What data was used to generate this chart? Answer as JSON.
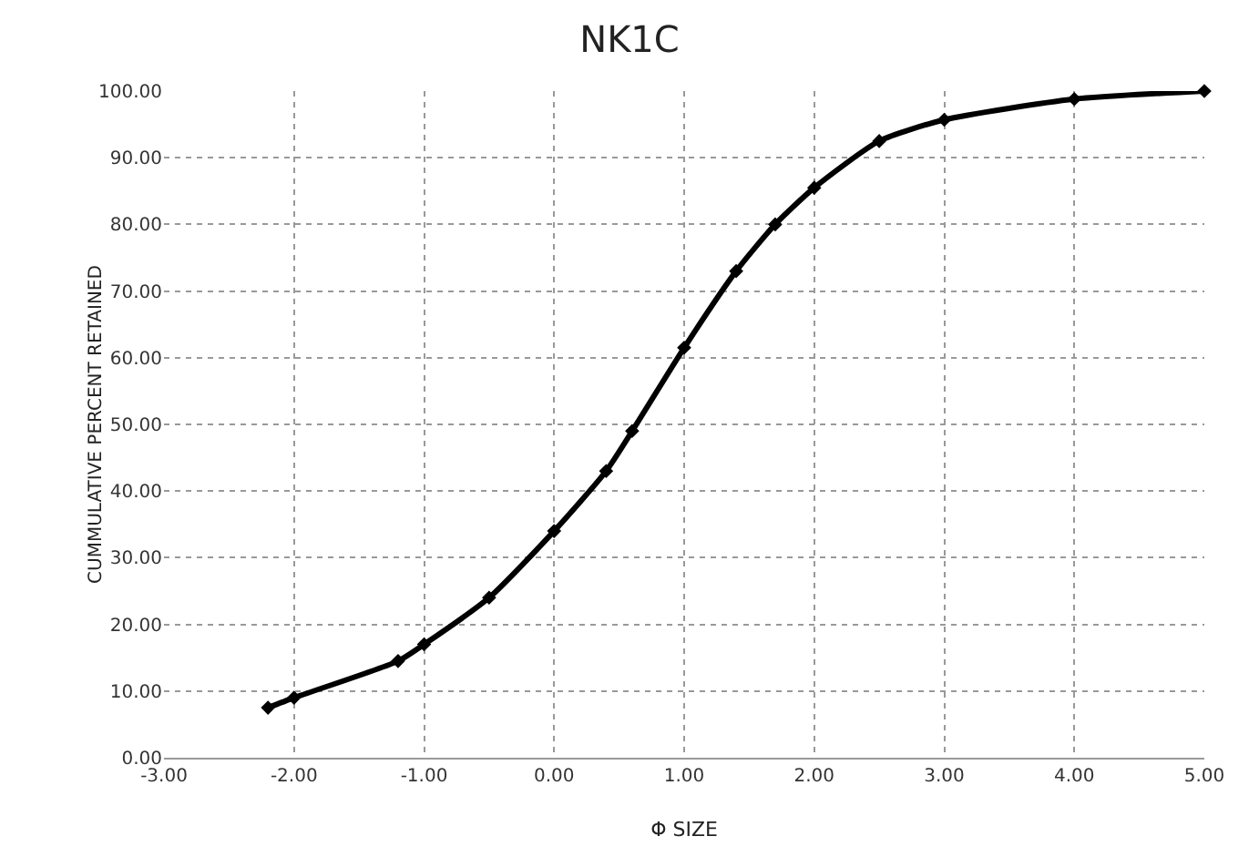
{
  "chart_data": {
    "type": "line",
    "title": "NK1C",
    "xlabel": "Φ SIZE",
    "ylabel": "CUMMULATIVE PERCENT RETAINED",
    "x": [
      -2.2,
      -2,
      -1.2,
      -1,
      -0.5,
      0,
      0.4,
      0.6,
      1,
      1.4,
      1.7,
      2,
      2.5,
      3,
      4,
      5
    ],
    "series": [
      {
        "color": "#000000",
        "values": [
          7.5,
          9,
          14.5,
          17,
          24,
          34,
          43,
          49,
          61.5,
          73,
          80,
          85.5,
          92.5,
          95.7,
          98.8,
          100
        ]
      }
    ],
    "xlim": [
      -3,
      5
    ],
    "xticks": [
      {
        "value": -3,
        "label": "-3.00"
      },
      {
        "value": -2,
        "label": "-2.00"
      },
      {
        "value": -1,
        "label": "-1.00"
      },
      {
        "value": 0,
        "label": "0.00"
      },
      {
        "value": 1,
        "label": "1.00"
      },
      {
        "value": 2,
        "label": "2.00"
      },
      {
        "value": 3,
        "label": "3.00"
      },
      {
        "value": 4,
        "label": "4.00"
      },
      {
        "value": 5,
        "label": "5.00"
      }
    ],
    "ylim": [
      0,
      100
    ],
    "yticks": [
      {
        "value": 0,
        "label": "0.00"
      },
      {
        "value": 10,
        "label": "10.00"
      },
      {
        "value": 20,
        "label": "20.00"
      },
      {
        "value": 30,
        "label": "30.00"
      },
      {
        "value": 40,
        "label": "40.00"
      },
      {
        "value": 50,
        "label": "50.00"
      },
      {
        "value": 60,
        "label": "60.00"
      },
      {
        "value": 70,
        "label": "70.00"
      },
      {
        "value": 80,
        "label": "80.00"
      },
      {
        "value": 90,
        "label": "90.00"
      },
      {
        "value": 100,
        "label": "100.00"
      }
    ],
    "grid": true,
    "marker": "diamond",
    "line_style": "solid"
  }
}
